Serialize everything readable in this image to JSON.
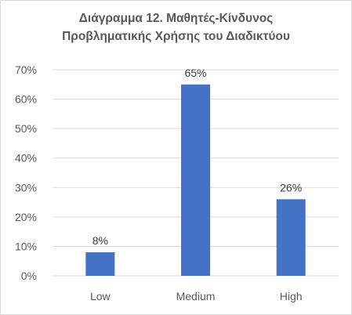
{
  "chart_data": {
    "type": "bar",
    "title_lines": [
      "Διάγραμμα 12. Μαθητές-Κίνδυνος",
      "Προβληματικής Χρήσης του Διαδικτύου"
    ],
    "categories": [
      "Low",
      "Medium",
      "High"
    ],
    "values": [
      8,
      65,
      26
    ],
    "data_labels": [
      "8%",
      "65%",
      "26%"
    ],
    "y_ticks": [
      "0%",
      "10%",
      "20%",
      "30%",
      "40%",
      "50%",
      "60%",
      "70%"
    ],
    "ylim": [
      0,
      70
    ],
    "grid": true,
    "legend": "none",
    "bar_color": "#4472C4",
    "grid_color": "#d9d9d9"
  }
}
